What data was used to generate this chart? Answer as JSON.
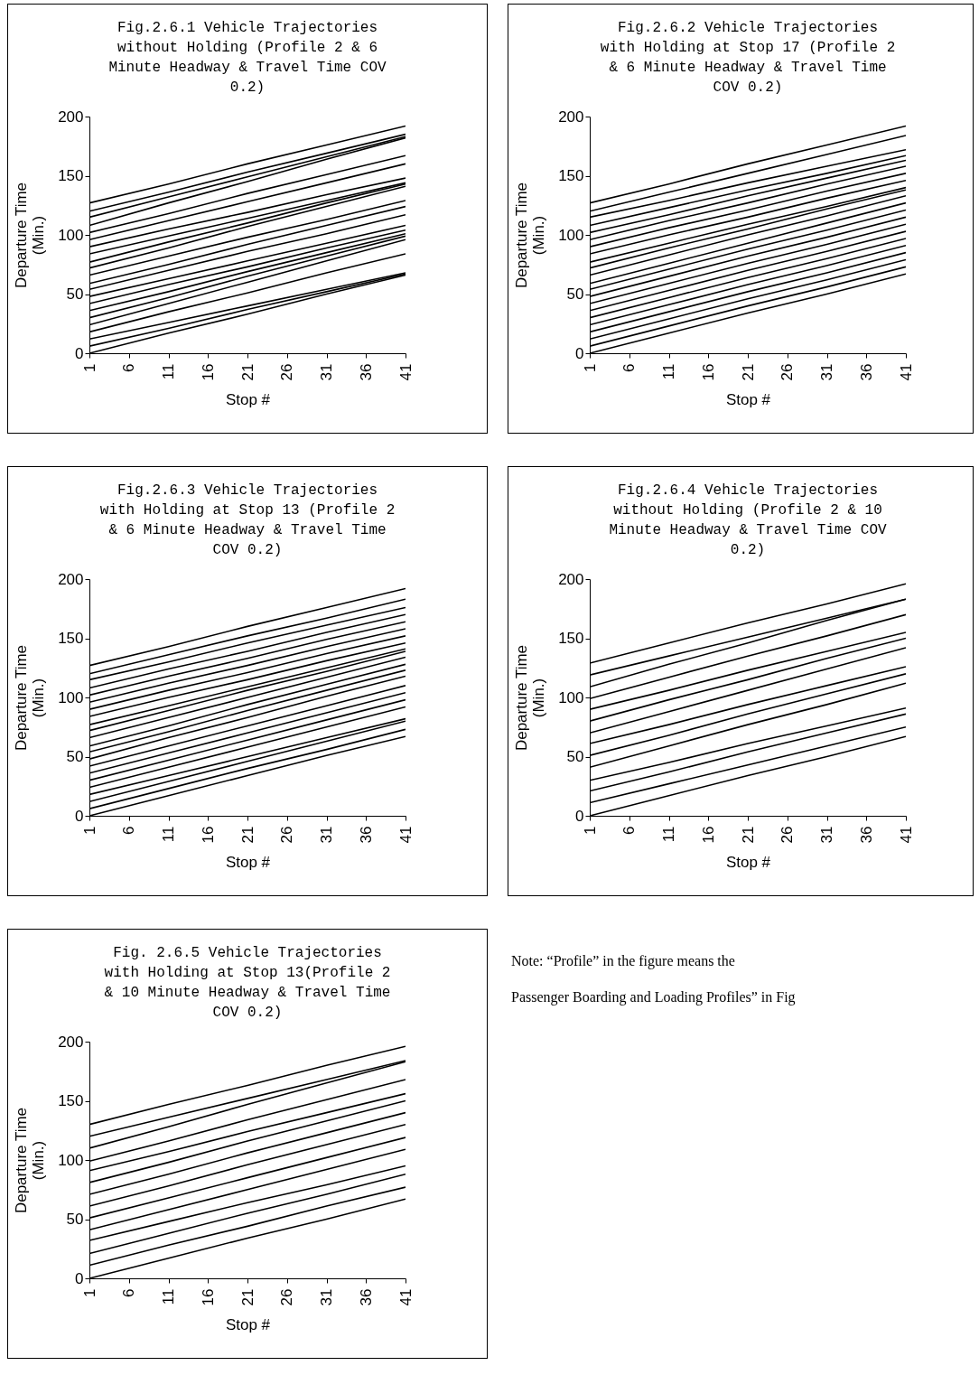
{
  "chart_data": [
    {
      "type": "line",
      "title": "Fig.2.6.1 Vehicle Trajectories without Holding (Profile 2 & 6 Minute Headway & Travel Time COV 0.2)",
      "xlabel": "Stop #",
      "ylabel": "Departure Time (Min.)",
      "x": [
        1,
        11,
        21,
        31,
        41
      ],
      "xlim": [
        1,
        41
      ],
      "xticks": [
        1,
        6,
        11,
        16,
        21,
        26,
        31,
        36,
        41
      ],
      "ylim": [
        0,
        200
      ],
      "yticks": [
        0,
        50,
        100,
        150,
        200
      ],
      "grid": false,
      "legend": false,
      "series": [
        {
          "color": "#000000",
          "values": [
            0,
            17,
            33,
            50,
            66
          ]
        },
        {
          "color": "#000000",
          "values": [
            6,
            21,
            37,
            52,
            67
          ]
        },
        {
          "color": "#000000",
          "values": [
            12,
            26,
            40,
            54,
            68
          ]
        },
        {
          "color": "#000000",
          "values": [
            18,
            35,
            51,
            68,
            84
          ]
        },
        {
          "color": "#000000",
          "values": [
            24,
            42,
            60,
            78,
            96
          ]
        },
        {
          "color": "#000000",
          "values": [
            30,
            47,
            65,
            82,
            99
          ]
        },
        {
          "color": "#000000",
          "values": [
            36,
            52,
            69,
            85,
            101
          ]
        },
        {
          "color": "#000000",
          "values": [
            42,
            58,
            73,
            89,
            104
          ]
        },
        {
          "color": "#000000",
          "values": [
            48,
            63,
            78,
            93,
            108
          ]
        },
        {
          "color": "#000000",
          "values": [
            54,
            70,
            86,
            101,
            117
          ]
        },
        {
          "color": "#000000",
          "values": [
            59,
            75,
            92,
            108,
            124
          ]
        },
        {
          "color": "#000000",
          "values": [
            66,
            82,
            98,
            113,
            129
          ]
        },
        {
          "color": "#000000",
          "values": [
            72,
            89,
            107,
            124,
            141
          ]
        },
        {
          "color": "#000000",
          "values": [
            77,
            94,
            110,
            127,
            143
          ]
        },
        {
          "color": "#000000",
          "values": [
            84,
            99,
            114,
            129,
            144
          ]
        },
        {
          "color": "#000000",
          "values": [
            90,
            105,
            119,
            134,
            148
          ]
        },
        {
          "color": "#000000",
          "values": [
            96,
            112,
            128,
            144,
            160
          ]
        },
        {
          "color": "#000000",
          "values": [
            102,
            118,
            135,
            151,
            167
          ]
        },
        {
          "color": "#000000",
          "values": [
            108,
            127,
            145,
            164,
            182
          ]
        },
        {
          "color": "#000000",
          "values": [
            115,
            132,
            149,
            166,
            183
          ]
        },
        {
          "color": "#000000",
          "values": [
            120,
            136,
            153,
            169,
            185
          ]
        },
        {
          "color": "#000000",
          "values": [
            127,
            143,
            160,
            176,
            192
          ]
        }
      ]
    },
    {
      "type": "line",
      "title": "Fig.2.6.2 Vehicle Trajectories with Holding at Stop 17 (Profile 2 & 6 Minute Headway & Travel Time COV 0.2)",
      "xlabel": "Stop #",
      "ylabel": "Departure Time (Min.)",
      "x": [
        1,
        11,
        21,
        31,
        41
      ],
      "xlim": [
        1,
        41
      ],
      "xticks": [
        1,
        6,
        11,
        16,
        21,
        26,
        31,
        36,
        41
      ],
      "ylim": [
        0,
        200
      ],
      "yticks": [
        0,
        50,
        100,
        150,
        200
      ],
      "grid": false,
      "legend": false,
      "series": [
        {
          "color": "#000000",
          "values": [
            0,
            17,
            34,
            50,
            67
          ]
        },
        {
          "color": "#000000",
          "values": [
            6,
            23,
            40,
            56,
            73
          ]
        },
        {
          "color": "#000000",
          "values": [
            12,
            29,
            46,
            62,
            79
          ]
        },
        {
          "color": "#000000",
          "values": [
            18,
            35,
            52,
            68,
            85
          ]
        },
        {
          "color": "#000000",
          "values": [
            24,
            41,
            58,
            74,
            91
          ]
        },
        {
          "color": "#000000",
          "values": [
            30,
            47,
            64,
            80,
            97
          ]
        },
        {
          "color": "#000000",
          "values": [
            36,
            53,
            70,
            86,
            103
          ]
        },
        {
          "color": "#000000",
          "values": [
            42,
            59,
            76,
            92,
            109
          ]
        },
        {
          "color": "#000000",
          "values": [
            48,
            65,
            82,
            98,
            115
          ]
        },
        {
          "color": "#000000",
          "values": [
            54,
            71,
            88,
            104,
            121
          ]
        },
        {
          "color": "#000000",
          "values": [
            59,
            76,
            93,
            110,
            127
          ]
        },
        {
          "color": "#000000",
          "values": [
            66,
            83,
            100,
            116,
            133
          ]
        },
        {
          "color": "#000000",
          "values": [
            72,
            89,
            105,
            122,
            138
          ]
        },
        {
          "color": "#000000",
          "values": [
            77,
            93,
            109,
            124,
            140
          ]
        },
        {
          "color": "#000000",
          "values": [
            84,
            100,
            115,
            131,
            146
          ]
        },
        {
          "color": "#000000",
          "values": [
            90,
            106,
            121,
            137,
            152
          ]
        },
        {
          "color": "#000000",
          "values": [
            96,
            112,
            127,
            143,
            158
          ]
        },
        {
          "color": "#000000",
          "values": [
            102,
            117,
            133,
            148,
            163
          ]
        },
        {
          "color": "#000000",
          "values": [
            108,
            123,
            138,
            152,
            167
          ]
        },
        {
          "color": "#000000",
          "values": [
            115,
            129,
            144,
            158,
            172
          ]
        },
        {
          "color": "#000000",
          "values": [
            120,
            136,
            152,
            168,
            184
          ]
        },
        {
          "color": "#000000",
          "values": [
            127,
            143,
            160,
            176,
            192
          ]
        }
      ]
    },
    {
      "type": "line",
      "title": "Fig.2.6.3 Vehicle Trajectories with Holding at Stop 13 (Profile 2 & 6 Minute Headway & Travel Time COV 0.2)",
      "xlabel": "Stop #",
      "ylabel": "Departure Time (Min.)",
      "x": [
        1,
        11,
        21,
        31,
        41
      ],
      "xlim": [
        1,
        41
      ],
      "xticks": [
        1,
        6,
        11,
        16,
        21,
        26,
        31,
        36,
        41
      ],
      "ylim": [
        0,
        200
      ],
      "yticks": [
        0,
        50,
        100,
        150,
        200
      ],
      "grid": false,
      "legend": false,
      "series": [
        {
          "color": "#000000",
          "values": [
            0,
            17,
            34,
            51,
            67
          ]
        },
        {
          "color": "#000000",
          "values": [
            6,
            23,
            40,
            56,
            73
          ]
        },
        {
          "color": "#000000",
          "values": [
            12,
            29,
            46,
            63,
            80
          ]
        },
        {
          "color": "#000000",
          "values": [
            18,
            34,
            50,
            66,
            82
          ]
        },
        {
          "color": "#000000",
          "values": [
            24,
            41,
            58,
            75,
            92
          ]
        },
        {
          "color": "#000000",
          "values": [
            30,
            47,
            64,
            81,
            98
          ]
        },
        {
          "color": "#000000",
          "values": [
            36,
            53,
            70,
            87,
            104
          ]
        },
        {
          "color": "#000000",
          "values": [
            42,
            59,
            76,
            93,
            110
          ]
        },
        {
          "color": "#000000",
          "values": [
            48,
            66,
            83,
            101,
            118
          ]
        },
        {
          "color": "#000000",
          "values": [
            54,
            71,
            89,
            106,
            123
          ]
        },
        {
          "color": "#000000",
          "values": [
            59,
            76,
            94,
            111,
            128
          ]
        },
        {
          "color": "#000000",
          "values": [
            66,
            83,
            100,
            117,
            134
          ]
        },
        {
          "color": "#000000",
          "values": [
            72,
            89,
            106,
            122,
            139
          ]
        },
        {
          "color": "#000000",
          "values": [
            77,
            93,
            109,
            125,
            141
          ]
        },
        {
          "color": "#000000",
          "values": [
            84,
            100,
            115,
            131,
            146
          ]
        },
        {
          "color": "#000000",
          "values": [
            90,
            106,
            121,
            137,
            152
          ]
        },
        {
          "color": "#000000",
          "values": [
            96,
            112,
            127,
            143,
            158
          ]
        },
        {
          "color": "#000000",
          "values": [
            102,
            118,
            133,
            149,
            164
          ]
        },
        {
          "color": "#000000",
          "values": [
            108,
            124,
            139,
            155,
            170
          ]
        },
        {
          "color": "#000000",
          "values": [
            115,
            130,
            146,
            161,
            176
          ]
        },
        {
          "color": "#000000",
          "values": [
            120,
            136,
            152,
            167,
            183
          ]
        },
        {
          "color": "#000000",
          "values": [
            127,
            143,
            160,
            176,
            192
          ]
        }
      ]
    },
    {
      "type": "line",
      "title": "Fig.2.6.4 Vehicle Trajectories without Holding (Profile 2 & 10 Minute Headway & Travel Time COV 0.2)",
      "xlabel": "Stop #",
      "ylabel": "Departure Time (Min.)",
      "x": [
        1,
        11,
        21,
        31,
        41
      ],
      "xlim": [
        1,
        41
      ],
      "xticks": [
        1,
        6,
        11,
        16,
        21,
        26,
        31,
        36,
        41
      ],
      "ylim": [
        0,
        200
      ],
      "yticks": [
        0,
        50,
        100,
        150,
        200
      ],
      "grid": false,
      "legend": false,
      "series": [
        {
          "color": "#000000",
          "values": [
            0,
            17,
            34,
            50,
            67
          ]
        },
        {
          "color": "#000000",
          "values": [
            11,
            27,
            43,
            59,
            75
          ]
        },
        {
          "color": "#000000",
          "values": [
            21,
            37,
            54,
            70,
            86
          ]
        },
        {
          "color": "#000000",
          "values": [
            30,
            45,
            61,
            76,
            91
          ]
        },
        {
          "color": "#000000",
          "values": [
            41,
            59,
            77,
            94,
            112
          ]
        },
        {
          "color": "#000000",
          "values": [
            51,
            68,
            86,
            103,
            120
          ]
        },
        {
          "color": "#000000",
          "values": [
            61,
            77,
            94,
            110,
            126
          ]
        },
        {
          "color": "#000000",
          "values": [
            70,
            88,
            106,
            124,
            142
          ]
        },
        {
          "color": "#000000",
          "values": [
            80,
            98,
            115,
            133,
            150
          ]
        },
        {
          "color": "#000000",
          "values": [
            90,
            106,
            123,
            139,
            155
          ]
        },
        {
          "color": "#000000",
          "values": [
            99,
            117,
            135,
            152,
            170
          ]
        },
        {
          "color": "#000000",
          "values": [
            109,
            128,
            146,
            165,
            183
          ]
        },
        {
          "color": "#000000",
          "values": [
            119,
            135,
            151,
            167,
            183
          ]
        },
        {
          "color": "#000000",
          "values": [
            129,
            146,
            163,
            179,
            196
          ]
        }
      ]
    },
    {
      "type": "line",
      "title": "Fig. 2.6.5 Vehicle Trajectories with Holding at Stop 13(Profile 2 & 10 Minute Headway & Travel Time COV 0.2)",
      "xlabel": "Stop #",
      "ylabel": "Departure Time (Min.)",
      "x": [
        1,
        11,
        21,
        31,
        41
      ],
      "xlim": [
        1,
        41
      ],
      "xticks": [
        1,
        6,
        11,
        16,
        21,
        26,
        31,
        36,
        41
      ],
      "ylim": [
        0,
        200
      ],
      "yticks": [
        0,
        50,
        100,
        150,
        200
      ],
      "grid": false,
      "legend": false,
      "series": [
        {
          "color": "#000000",
          "values": [
            0,
            17,
            34,
            50,
            67
          ]
        },
        {
          "color": "#000000",
          "values": [
            11,
            28,
            44,
            61,
            77
          ]
        },
        {
          "color": "#000000",
          "values": [
            21,
            38,
            55,
            71,
            88
          ]
        },
        {
          "color": "#000000",
          "values": [
            32,
            48,
            64,
            79,
            95
          ]
        },
        {
          "color": "#000000",
          "values": [
            41,
            58,
            75,
            92,
            109
          ]
        },
        {
          "color": "#000000",
          "values": [
            51,
            68,
            85,
            102,
            119
          ]
        },
        {
          "color": "#000000",
          "values": [
            61,
            78,
            96,
            113,
            130
          ]
        },
        {
          "color": "#000000",
          "values": [
            71,
            88,
            106,
            123,
            140
          ]
        },
        {
          "color": "#000000",
          "values": [
            81,
            98,
            116,
            133,
            150
          ]
        },
        {
          "color": "#000000",
          "values": [
            91,
            107,
            124,
            140,
            156
          ]
        },
        {
          "color": "#000000",
          "values": [
            99,
            116,
            134,
            151,
            168
          ]
        },
        {
          "color": "#000000",
          "values": [
            110,
            128,
            147,
            165,
            183
          ]
        },
        {
          "color": "#000000",
          "values": [
            120,
            136,
            152,
            168,
            184
          ]
        },
        {
          "color": "#000000",
          "values": [
            130,
            147,
            163,
            180,
            196
          ]
        }
      ]
    },
    {
      "type": "other",
      "annotations": [
        "Note: “Profile” in the figure means the",
        "Passenger Boarding and Loading Profiles” in Fig"
      ]
    }
  ]
}
